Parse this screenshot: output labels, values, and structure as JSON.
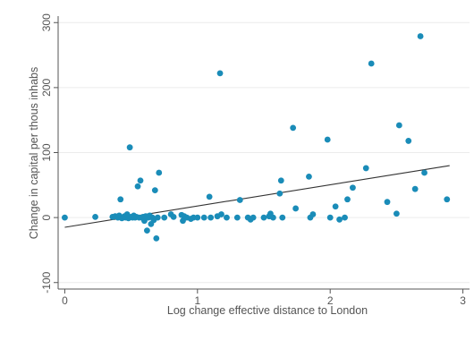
{
  "chart_data": {
    "type": "scatter",
    "title": "",
    "xlabel": "Log change effective distance to London",
    "ylabel": "Change in capital per thous inhabs",
    "xlim": [
      -0.05,
      3.05
    ],
    "ylim": [
      -110,
      310
    ],
    "xticks": [
      0,
      1,
      2,
      3
    ],
    "xtick_labels": [
      "0",
      "1",
      "2",
      "3"
    ],
    "yticks": [
      -100,
      0,
      100,
      200,
      300
    ],
    "ytick_labels": [
      "-100",
      "0",
      "100",
      "200",
      "300"
    ],
    "grid": true,
    "legend": "none",
    "colors": {
      "points": "#1a8cb8",
      "fit_line": "#333333",
      "grid": "#ececec",
      "axis": "#555555"
    },
    "fit_line": {
      "x": [
        0,
        2.9
      ],
      "y": [
        -15,
        80
      ]
    },
    "points": [
      {
        "x": 0.0,
        "y": 0
      },
      {
        "x": 0.23,
        "y": 1
      },
      {
        "x": 0.36,
        "y": 1
      },
      {
        "x": 0.38,
        "y": 2
      },
      {
        "x": 0.4,
        "y": 0
      },
      {
        "x": 0.41,
        "y": 3
      },
      {
        "x": 0.42,
        "y": 28
      },
      {
        "x": 0.43,
        "y": -1
      },
      {
        "x": 0.44,
        "y": 0
      },
      {
        "x": 0.45,
        "y": 2
      },
      {
        "x": 0.46,
        "y": 0
      },
      {
        "x": 0.47,
        "y": 5
      },
      {
        "x": 0.48,
        "y": -1
      },
      {
        "x": 0.49,
        "y": 108
      },
      {
        "x": 0.5,
        "y": 1
      },
      {
        "x": 0.51,
        "y": 0
      },
      {
        "x": 0.52,
        "y": 3
      },
      {
        "x": 0.53,
        "y": 0
      },
      {
        "x": 0.54,
        "y": 1
      },
      {
        "x": 0.55,
        "y": 48
      },
      {
        "x": 0.56,
        "y": 0
      },
      {
        "x": 0.57,
        "y": 57
      },
      {
        "x": 0.58,
        "y": 0
      },
      {
        "x": 0.59,
        "y": 1
      },
      {
        "x": 0.6,
        "y": -5
      },
      {
        "x": 0.61,
        "y": 2
      },
      {
        "x": 0.62,
        "y": -20
      },
      {
        "x": 0.63,
        "y": 0
      },
      {
        "x": 0.64,
        "y": 3
      },
      {
        "x": 0.65,
        "y": -10
      },
      {
        "x": 0.66,
        "y": 0
      },
      {
        "x": 0.67,
        "y": -4
      },
      {
        "x": 0.68,
        "y": 42
      },
      {
        "x": 0.69,
        "y": -32
      },
      {
        "x": 0.7,
        "y": 0
      },
      {
        "x": 0.71,
        "y": 69
      },
      {
        "x": 0.75,
        "y": 0
      },
      {
        "x": 0.8,
        "y": 5
      },
      {
        "x": 0.82,
        "y": 1
      },
      {
        "x": 0.88,
        "y": 4
      },
      {
        "x": 0.89,
        "y": -5
      },
      {
        "x": 0.9,
        "y": 2
      },
      {
        "x": 0.92,
        "y": 0
      },
      {
        "x": 0.95,
        "y": -2
      },
      {
        "x": 0.97,
        "y": 0
      },
      {
        "x": 1.0,
        "y": 0
      },
      {
        "x": 1.05,
        "y": 0
      },
      {
        "x": 1.09,
        "y": 32
      },
      {
        "x": 1.1,
        "y": 0
      },
      {
        "x": 1.15,
        "y": 2
      },
      {
        "x": 1.17,
        "y": 222
      },
      {
        "x": 1.18,
        "y": 5
      },
      {
        "x": 1.22,
        "y": 0
      },
      {
        "x": 1.3,
        "y": 0
      },
      {
        "x": 1.32,
        "y": 27
      },
      {
        "x": 1.38,
        "y": 0
      },
      {
        "x": 1.4,
        "y": -3
      },
      {
        "x": 1.42,
        "y": 0
      },
      {
        "x": 1.5,
        "y": 0
      },
      {
        "x": 1.54,
        "y": 2
      },
      {
        "x": 1.55,
        "y": 6
      },
      {
        "x": 1.57,
        "y": 0
      },
      {
        "x": 1.62,
        "y": 37
      },
      {
        "x": 1.63,
        "y": 57
      },
      {
        "x": 1.64,
        "y": 0
      },
      {
        "x": 1.72,
        "y": 138
      },
      {
        "x": 1.74,
        "y": 14
      },
      {
        "x": 1.84,
        "y": 63
      },
      {
        "x": 1.85,
        "y": 0
      },
      {
        "x": 1.87,
        "y": 5
      },
      {
        "x": 1.98,
        "y": 120
      },
      {
        "x": 2.0,
        "y": 0
      },
      {
        "x": 2.04,
        "y": 17
      },
      {
        "x": 2.07,
        "y": -3
      },
      {
        "x": 2.11,
        "y": 0
      },
      {
        "x": 2.13,
        "y": 28
      },
      {
        "x": 2.17,
        "y": 46
      },
      {
        "x": 2.27,
        "y": 76
      },
      {
        "x": 2.31,
        "y": 237
      },
      {
        "x": 2.43,
        "y": 24
      },
      {
        "x": 2.5,
        "y": 6
      },
      {
        "x": 2.52,
        "y": 142
      },
      {
        "x": 2.59,
        "y": 118
      },
      {
        "x": 2.64,
        "y": 44
      },
      {
        "x": 2.68,
        "y": 279
      },
      {
        "x": 2.71,
        "y": 69
      },
      {
        "x": 2.88,
        "y": 28
      }
    ]
  }
}
